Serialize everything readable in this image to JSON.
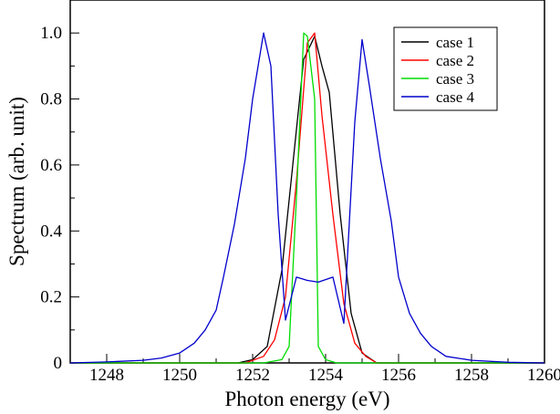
{
  "chart_data": {
    "type": "line",
    "title": "",
    "xlabel": "Photon energy (eV)",
    "ylabel": "Spectrum (arb. unit)",
    "xlim": [
      1247,
      1260
    ],
    "ylim": [
      0,
      1.1
    ],
    "xticks": [
      1248,
      1250,
      1252,
      1254,
      1256,
      1258,
      1260
    ],
    "yticks": [
      0,
      0.2,
      0.4,
      0.6,
      0.8,
      1.0
    ],
    "xtick_labels": [
      "1248",
      "1250",
      "1252",
      "1254",
      "1256",
      "1258",
      "1260"
    ],
    "ytick_labels": [
      "0",
      "0.2",
      "0.4",
      "0.6",
      "0.8",
      "1.0"
    ],
    "grid": false,
    "legend_position": "top-right",
    "series": [
      {
        "name": "case 1",
        "color": "#000000",
        "x": [
          1247,
          1251.6,
          1252.0,
          1252.4,
          1252.8,
          1253.1,
          1253.4,
          1253.7,
          1253.9,
          1254.1,
          1254.4,
          1254.7,
          1255.0,
          1255.4,
          1260
        ],
        "y": [
          0,
          0,
          0.01,
          0.05,
          0.28,
          0.6,
          0.92,
          0.99,
          0.9,
          0.82,
          0.45,
          0.15,
          0.03,
          0,
          0
        ]
      },
      {
        "name": "case 2",
        "color": "#ff0000",
        "x": [
          1247,
          1251.8,
          1252.3,
          1252.6,
          1252.9,
          1253.2,
          1253.5,
          1253.7,
          1253.9,
          1254.2,
          1254.5,
          1254.8,
          1255.1,
          1255.4,
          1260
        ],
        "y": [
          0,
          0,
          0.02,
          0.07,
          0.2,
          0.55,
          0.97,
          1.0,
          0.75,
          0.45,
          0.18,
          0.06,
          0.02,
          0,
          0
        ]
      },
      {
        "name": "case 3",
        "color": "#00dd00",
        "x": [
          1247,
          1252.3,
          1252.8,
          1253.0,
          1253.2,
          1253.4,
          1253.5,
          1253.7,
          1253.8,
          1254.0,
          1254.3,
          1260
        ],
        "y": [
          0,
          0,
          0.01,
          0.05,
          0.5,
          1.0,
          0.99,
          0.8,
          0.05,
          0.01,
          0,
          0
        ]
      },
      {
        "name": "case 4",
        "color": "#0000cc",
        "x": [
          1247,
          1248.0,
          1249.0,
          1249.5,
          1250.0,
          1250.4,
          1250.7,
          1251.0,
          1251.2,
          1251.5,
          1251.8,
          1252.0,
          1252.3,
          1252.5,
          1252.7,
          1252.9,
          1253.2,
          1253.5,
          1253.8,
          1254.2,
          1254.5,
          1254.8,
          1255.0,
          1255.2,
          1255.5,
          1255.8,
          1256.0,
          1256.3,
          1256.6,
          1256.9,
          1257.3,
          1258.0,
          1259.0,
          1260
        ],
        "y": [
          0,
          0.003,
          0.008,
          0.015,
          0.03,
          0.06,
          0.1,
          0.16,
          0.26,
          0.42,
          0.62,
          0.8,
          1.0,
          0.9,
          0.45,
          0.13,
          0.26,
          0.25,
          0.245,
          0.26,
          0.12,
          0.73,
          0.98,
          0.84,
          0.62,
          0.43,
          0.26,
          0.15,
          0.09,
          0.05,
          0.02,
          0.008,
          0.002,
          0
        ]
      }
    ]
  }
}
